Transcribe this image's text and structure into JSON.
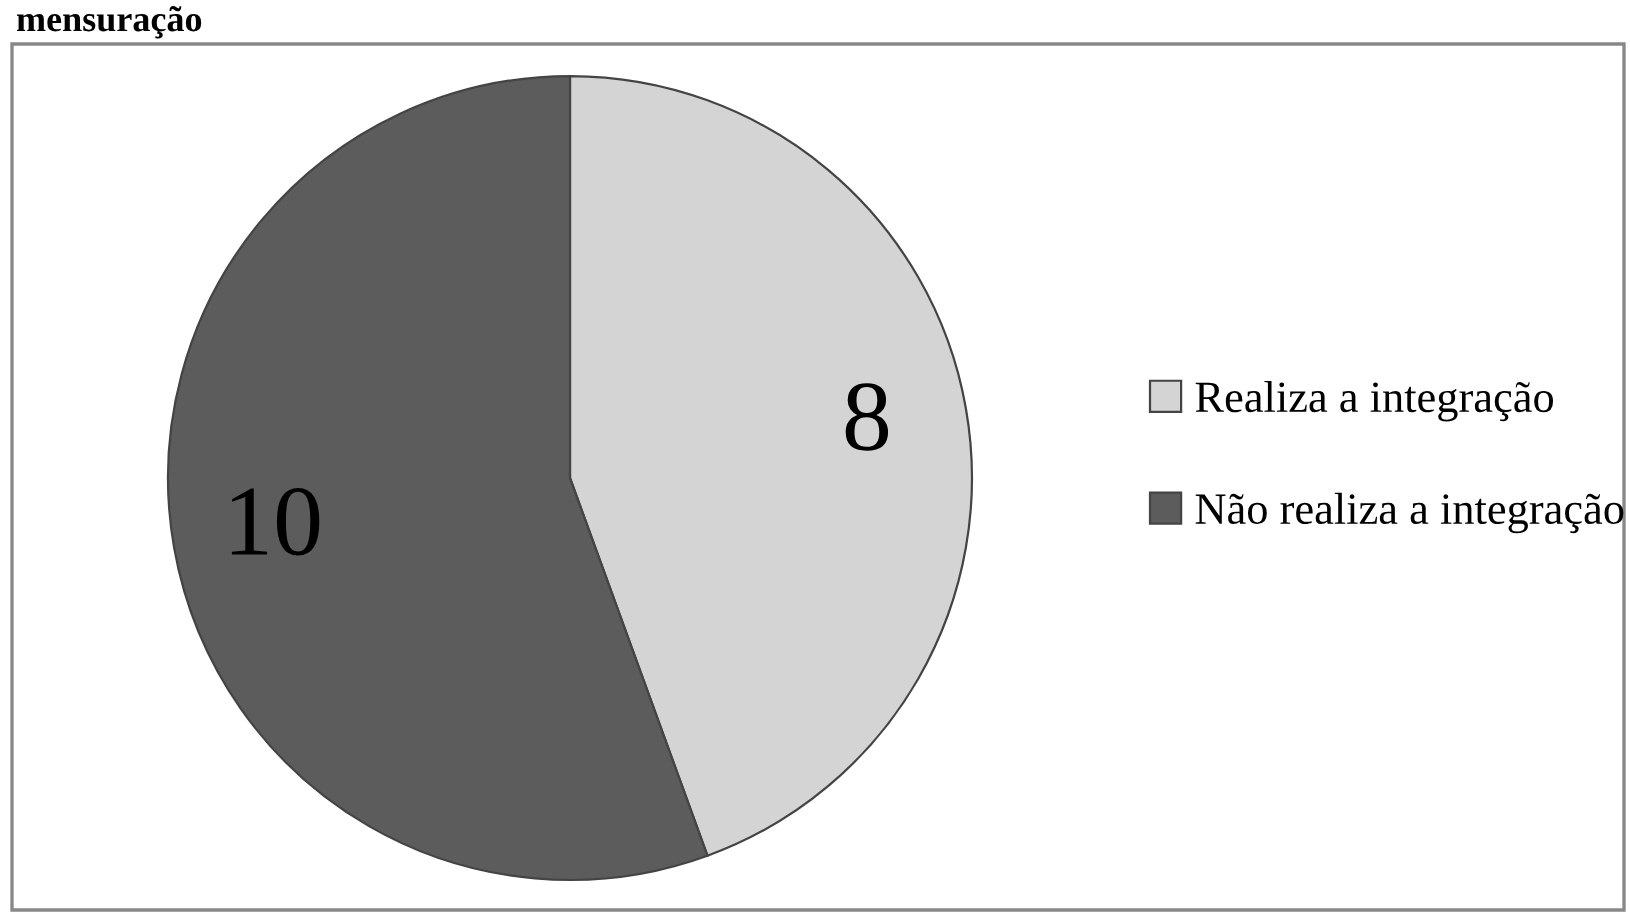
{
  "chart_data": {
    "type": "pie",
    "title": "mensuração",
    "categories": [
      "Realiza a integração",
      "Não realiza a integração"
    ],
    "values": [
      8,
      10
    ],
    "colors": [
      "#d4d4d4",
      "#5c5c5c"
    ],
    "data_labels": true,
    "legend": "right"
  }
}
